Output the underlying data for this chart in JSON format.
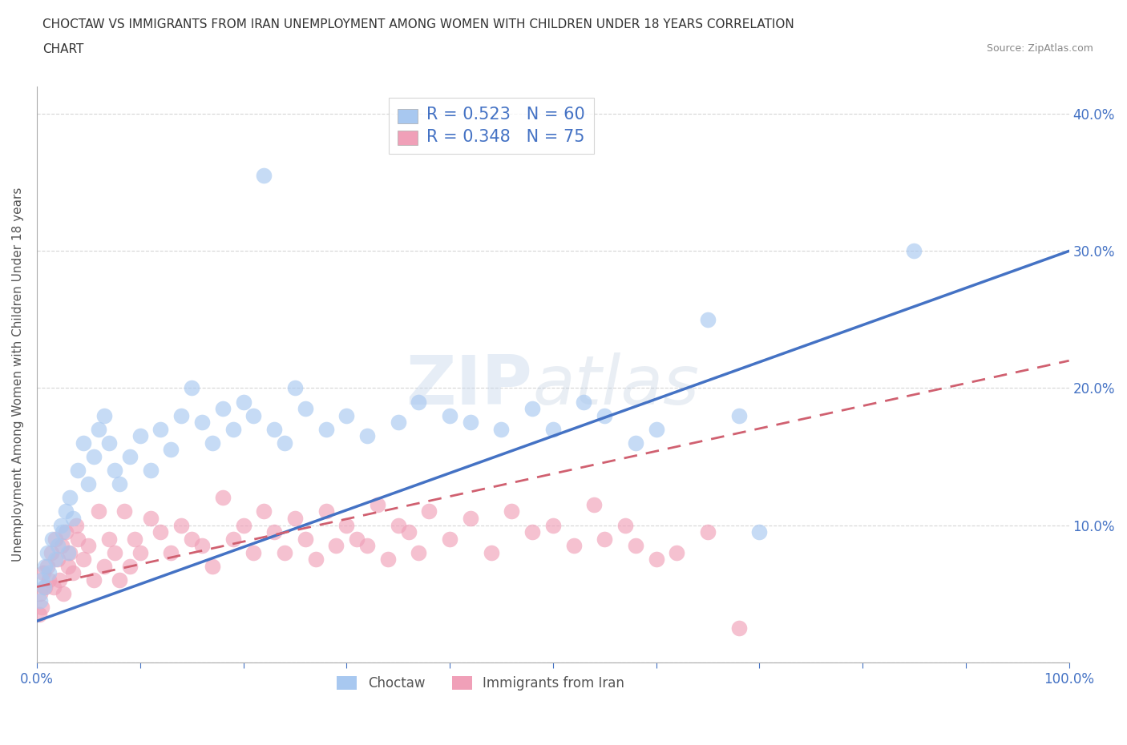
{
  "title_line1": "CHOCTAW VS IMMIGRANTS FROM IRAN UNEMPLOYMENT AMONG WOMEN WITH CHILDREN UNDER 18 YEARS CORRELATION",
  "title_line2": "CHART",
  "source_text": "Source: ZipAtlas.com",
  "ylabel": "Unemployment Among Women with Children Under 18 years",
  "xlim": [
    0,
    100
  ],
  "ylim": [
    0,
    42
  ],
  "choctaw_color": "#a8c8f0",
  "iran_color": "#f0a0b8",
  "choctaw_line_color": "#4472c4",
  "iran_line_color": "#d06070",
  "choctaw_R": 0.523,
  "choctaw_N": 60,
  "iran_R": 0.348,
  "iran_N": 75,
  "watermark_text": "ZIPatlas",
  "background_color": "#ffffff",
  "grid_color": "#cccccc",
  "choctaw_x": [
    0.3,
    0.5,
    0.7,
    0.8,
    1.0,
    1.2,
    1.5,
    1.8,
    2.0,
    2.3,
    2.5,
    2.8,
    3.0,
    3.2,
    3.5,
    4.0,
    4.5,
    5.0,
    5.5,
    6.0,
    6.5,
    7.0,
    7.5,
    8.0,
    9.0,
    10.0,
    11.0,
    12.0,
    13.0,
    14.0,
    15.0,
    16.0,
    17.0,
    18.0,
    19.0,
    20.0,
    21.0,
    22.0,
    23.0,
    24.0,
    25.0,
    26.0,
    28.0,
    30.0,
    32.0,
    35.0,
    37.0,
    40.0,
    42.0,
    45.0,
    48.0,
    50.0,
    53.0,
    55.0,
    58.0,
    60.0,
    65.0,
    68.0,
    70.0,
    85.0
  ],
  "choctaw_y": [
    4.5,
    6.0,
    5.5,
    7.0,
    8.0,
    6.5,
    9.0,
    7.5,
    8.5,
    10.0,
    9.5,
    11.0,
    8.0,
    12.0,
    10.5,
    14.0,
    16.0,
    13.0,
    15.0,
    17.0,
    18.0,
    16.0,
    14.0,
    13.0,
    15.0,
    16.5,
    14.0,
    17.0,
    15.5,
    18.0,
    20.0,
    17.5,
    16.0,
    18.5,
    17.0,
    19.0,
    18.0,
    35.5,
    17.0,
    16.0,
    20.0,
    18.5,
    17.0,
    18.0,
    16.5,
    17.5,
    19.0,
    18.0,
    17.5,
    17.0,
    18.5,
    17.0,
    19.0,
    18.0,
    16.0,
    17.0,
    25.0,
    18.0,
    9.5,
    30.0
  ],
  "iran_x": [
    0.2,
    0.3,
    0.5,
    0.6,
    0.8,
    1.0,
    1.2,
    1.4,
    1.6,
    1.8,
    2.0,
    2.2,
    2.4,
    2.6,
    2.8,
    3.0,
    3.2,
    3.5,
    3.8,
    4.0,
    4.5,
    5.0,
    5.5,
    6.0,
    6.5,
    7.0,
    7.5,
    8.0,
    8.5,
    9.0,
    9.5,
    10.0,
    11.0,
    12.0,
    13.0,
    14.0,
    15.0,
    16.0,
    17.0,
    18.0,
    19.0,
    20.0,
    21.0,
    22.0,
    23.0,
    24.0,
    25.0,
    26.0,
    27.0,
    28.0,
    29.0,
    30.0,
    31.0,
    32.0,
    33.0,
    34.0,
    35.0,
    36.0,
    37.0,
    38.0,
    40.0,
    42.0,
    44.0,
    46.0,
    48.0,
    50.0,
    52.0,
    54.0,
    55.0,
    57.0,
    58.0,
    60.0,
    62.0,
    65.0,
    68.0
  ],
  "iran_y": [
    3.5,
    5.0,
    4.0,
    6.5,
    5.5,
    7.0,
    6.0,
    8.0,
    5.5,
    9.0,
    7.5,
    6.0,
    8.5,
    5.0,
    9.5,
    7.0,
    8.0,
    6.5,
    10.0,
    9.0,
    7.5,
    8.5,
    6.0,
    11.0,
    7.0,
    9.0,
    8.0,
    6.0,
    11.0,
    7.0,
    9.0,
    8.0,
    10.5,
    9.5,
    8.0,
    10.0,
    9.0,
    8.5,
    7.0,
    12.0,
    9.0,
    10.0,
    8.0,
    11.0,
    9.5,
    8.0,
    10.5,
    9.0,
    7.5,
    11.0,
    8.5,
    10.0,
    9.0,
    8.5,
    11.5,
    7.5,
    10.0,
    9.5,
    8.0,
    11.0,
    9.0,
    10.5,
    8.0,
    11.0,
    9.5,
    10.0,
    8.5,
    11.5,
    9.0,
    10.0,
    8.5,
    7.5,
    8.0,
    9.5,
    2.5
  ],
  "choctaw_trend_x0": 0,
  "choctaw_trend_y0": 3.0,
  "choctaw_trend_x1": 100,
  "choctaw_trend_y1": 30.0,
  "iran_trend_x0": 0,
  "iran_trend_y0": 5.5,
  "iran_trend_x1": 100,
  "iran_trend_y1": 22.0
}
